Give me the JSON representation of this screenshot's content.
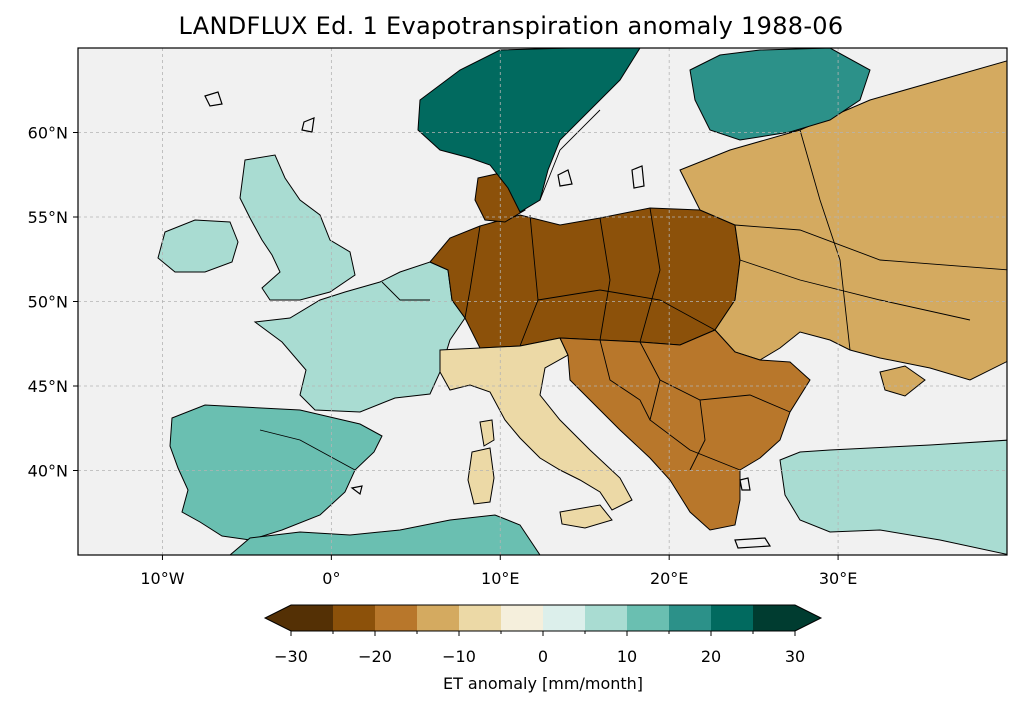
{
  "title": "LANDFLUX Ed. 1 Evapotranspiration anomaly 1988-06",
  "map": {
    "lon_range": [
      -15,
      40
    ],
    "lat_range": [
      35,
      65
    ],
    "lat_ticks": [
      {
        "value": 60,
        "label": "60°N"
      },
      {
        "value": 55,
        "label": "55°N"
      },
      {
        "value": 50,
        "label": "50°N"
      },
      {
        "value": 45,
        "label": "45°N"
      },
      {
        "value": 40,
        "label": "40°N"
      }
    ],
    "lon_ticks": [
      {
        "value": -10,
        "label": "10°W"
      },
      {
        "value": 0,
        "label": "0°"
      },
      {
        "value": 10,
        "label": "10°E"
      },
      {
        "value": 20,
        "label": "20°E"
      },
      {
        "value": 30,
        "label": "30°E"
      }
    ],
    "ocean_color": "#f1f1f1",
    "gridlines": "dashed",
    "regions": [
      {
        "name": "iberia",
        "anomaly": 12
      },
      {
        "name": "france",
        "anomaly": 8
      },
      {
        "name": "british-isles",
        "anomaly": 6
      },
      {
        "name": "scandinavia",
        "anomaly": 22
      },
      {
        "name": "finland",
        "anomaly": 16
      },
      {
        "name": "central-europe",
        "anomaly": -22
      },
      {
        "name": "eastern-europe",
        "anomaly": -14
      },
      {
        "name": "italy",
        "anomaly": -10
      },
      {
        "name": "balkans",
        "anomaly": -16
      },
      {
        "name": "turkey",
        "anomaly": 6
      }
    ]
  },
  "colorbar": {
    "label": "ET anomaly [mm/month]",
    "min": -30,
    "max": 30,
    "step": 5,
    "extend": "both",
    "tick_labels": [
      "−30",
      "−20",
      "−10",
      "0",
      "10",
      "20",
      "30"
    ],
    "tick_values": [
      -30,
      -20,
      -10,
      0,
      10,
      20,
      30
    ],
    "colors": [
      "#543005",
      "#8c510a",
      "#b8772b",
      "#d4aa60",
      "#ecd9a6",
      "#f5efdc",
      "#dcefeb",
      "#a9dcd2",
      "#6abfb1",
      "#2c9189",
      "#016a5f",
      "#003c30"
    ],
    "under_color": "#543005",
    "over_color": "#003c30"
  }
}
